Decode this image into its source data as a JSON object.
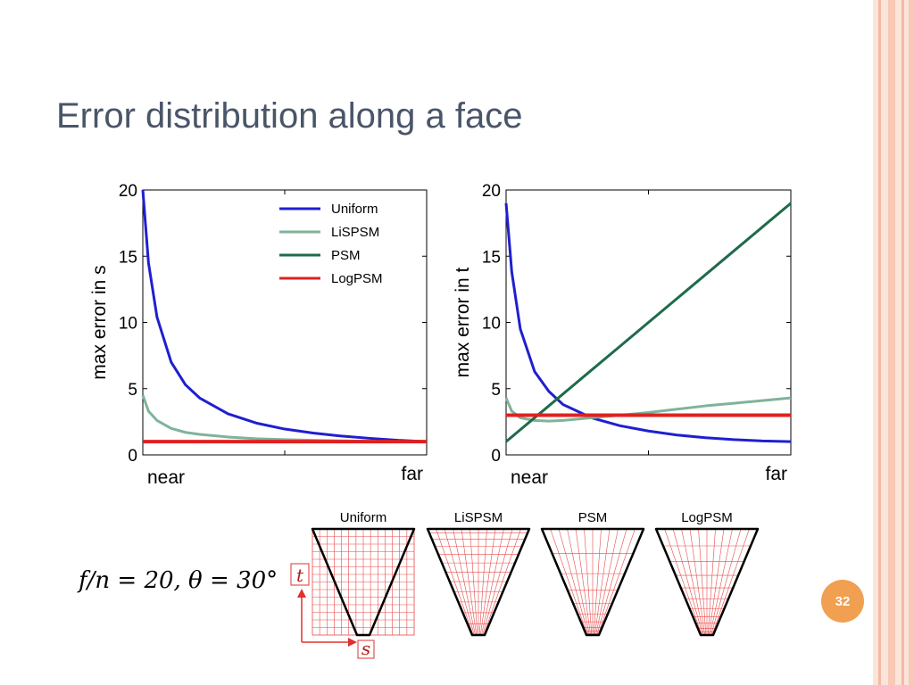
{
  "slide": {
    "title": "Error distribution along a face",
    "formula": "f/n = 20, θ = 30°",
    "page_number": "32"
  },
  "colors": {
    "uniform": "#1f1fd0",
    "lispsm": "#7fb39a",
    "psm": "#1e6b4a",
    "logpsm": "#e02020",
    "accent_border": "#f4b9a4",
    "badge": "#f0a050",
    "grid": "#e84a4a"
  },
  "chart_data": [
    {
      "type": "line",
      "title": "",
      "xlabel": "",
      "ylabel": "max error in s",
      "x_tick_labels": [
        "near",
        "far"
      ],
      "ylim": [
        0,
        20
      ],
      "yticks": [
        0,
        5,
        10,
        15,
        20
      ],
      "legend": {
        "placement": "top-right",
        "entries": [
          "Uniform",
          "LiSPSM",
          "PSM",
          "LogPSM"
        ]
      },
      "x": [
        0,
        0.02,
        0.05,
        0.1,
        0.15,
        0.2,
        0.3,
        0.4,
        0.5,
        0.6,
        0.7,
        0.8,
        0.9,
        1.0
      ],
      "series": [
        {
          "name": "Uniform",
          "values": [
            20,
            14.5,
            10.4,
            7.0,
            5.3,
            4.3,
            3.1,
            2.4,
            1.95,
            1.65,
            1.42,
            1.25,
            1.1,
            1.0
          ]
        },
        {
          "name": "LiSPSM",
          "values": [
            4.5,
            3.3,
            2.6,
            2.0,
            1.7,
            1.55,
            1.35,
            1.22,
            1.15,
            1.1,
            1.06,
            1.03,
            1.01,
            1.0
          ]
        },
        {
          "name": "LogPSM",
          "values": [
            1.0,
            1.0,
            1.0,
            1.0,
            1.0,
            1.0,
            1.0,
            1.0,
            1.0,
            1.0,
            1.0,
            1.0,
            1.0,
            1.0
          ]
        }
      ]
    },
    {
      "type": "line",
      "title": "",
      "xlabel": "",
      "ylabel": "max error in t",
      "x_tick_labels": [
        "near",
        "far"
      ],
      "ylim": [
        0,
        20
      ],
      "yticks": [
        0,
        5,
        10,
        15,
        20
      ],
      "x": [
        0,
        0.02,
        0.05,
        0.1,
        0.15,
        0.2,
        0.3,
        0.4,
        0.5,
        0.6,
        0.7,
        0.8,
        0.9,
        1.0
      ],
      "series": [
        {
          "name": "Uniform",
          "values": [
            19,
            13.8,
            9.5,
            6.3,
            4.8,
            3.8,
            2.8,
            2.2,
            1.8,
            1.5,
            1.3,
            1.15,
            1.05,
            1.0
          ]
        },
        {
          "name": "LiSPSM",
          "values": [
            4.3,
            3.3,
            2.8,
            2.6,
            2.55,
            2.6,
            2.8,
            3.0,
            3.2,
            3.45,
            3.7,
            3.9,
            4.1,
            4.3
          ]
        },
        {
          "name": "PSM",
          "values": [
            1.0,
            1.36,
            1.9,
            2.8,
            3.7,
            4.6,
            6.4,
            8.2,
            10.0,
            11.8,
            13.6,
            15.4,
            17.2,
            19.0
          ]
        },
        {
          "name": "LogPSM",
          "values": [
            3.0,
            3.0,
            3.0,
            3.0,
            3.0,
            3.0,
            3.0,
            3.0,
            3.0,
            3.0,
            3.0,
            3.0,
            3.0,
            3.0
          ]
        }
      ]
    }
  ],
  "diagrams": {
    "labels": [
      "Uniform",
      "LiSPSM",
      "PSM",
      "LogPSM"
    ],
    "axis_t": "t",
    "axis_s": "s"
  }
}
